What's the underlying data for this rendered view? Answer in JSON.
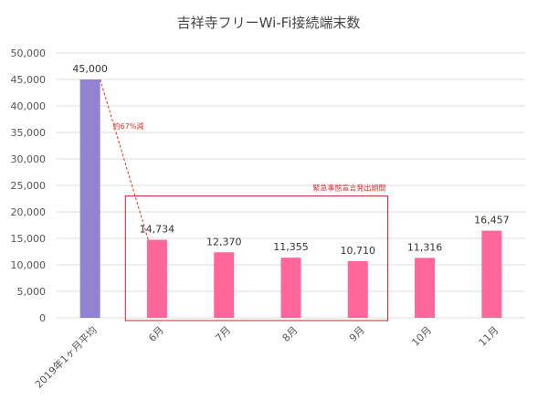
{
  "chart_data": {
    "type": "bar",
    "title": "吉祥寺フリーWi-Fi接続端末数",
    "xlabel": "",
    "ylabel": "",
    "categories": [
      "2019年1ヶ月平均",
      "6月",
      "7月",
      "8月",
      "9月",
      "10月",
      "11月"
    ],
    "values": [
      45000,
      14734,
      12370,
      11355,
      10710,
      11316,
      16457
    ],
    "data_labels": [
      "45,000",
      "14,734",
      "12,370",
      "11,355",
      "10,710",
      "11,316",
      "16,457"
    ],
    "y_ticks": [
      "0",
      "5,000",
      "10,000",
      "15,000",
      "20,000",
      "25,000",
      "30,000",
      "35,000",
      "40,000",
      "45,000",
      "50,000"
    ],
    "ylim": [
      0,
      50000
    ],
    "grid": true,
    "legend": "none",
    "colors": {
      "baseline_bar": "#9282d2",
      "monthly_bar": "#ff6699",
      "annotation": "#e03030",
      "grid": "#dddddd"
    },
    "annotations": {
      "decrease_label": "約67%減",
      "emergency_label": "緊急事態宣言発出期間"
    }
  }
}
